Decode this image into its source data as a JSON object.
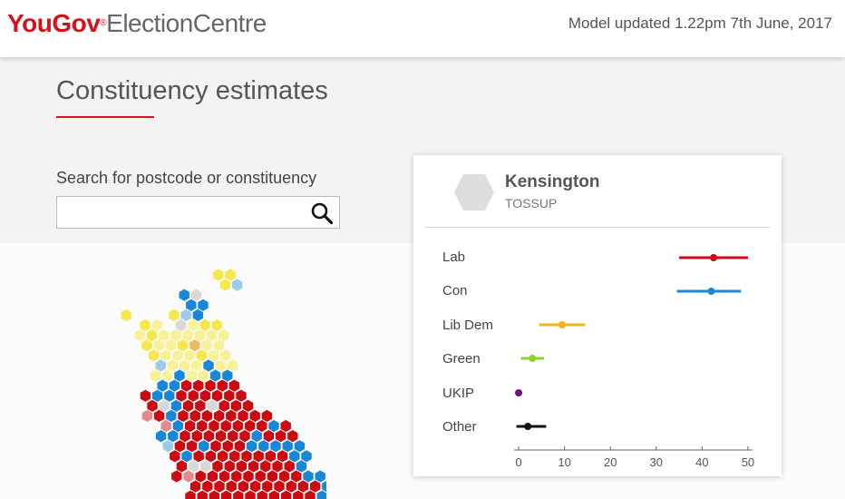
{
  "header": {
    "logo_you": "You",
    "logo_gov": "Gov",
    "logo_reg": "®",
    "logo_centre": "ElectionCentre",
    "updated": "Model updated 1.22pm 7th June, 2017"
  },
  "page": {
    "title": "Constituency estimates"
  },
  "search": {
    "label": "Search for postcode or constituency",
    "placeholder": "",
    "value": ""
  },
  "colors": {
    "lab": "#cc0a12",
    "con": "#1a86d8",
    "libdem": "#f6b21b",
    "green": "#8fd327",
    "ukip": "#70147a",
    "other": "#111111",
    "tossup": "#dddddd"
  },
  "constituency": {
    "name": "Kensington",
    "status": "TOSSUP"
  },
  "chart_data": {
    "type": "scatter",
    "categories": [
      "Lab",
      "Con",
      "Lib Dem",
      "Green",
      "UKIP",
      "Other"
    ],
    "estimates": [
      {
        "party": "Lab",
        "value": 42.5,
        "low": 35,
        "high": 50,
        "color": "#cc0a12"
      },
      {
        "party": "Con",
        "value": 42,
        "low": 34.5,
        "high": 48.5,
        "color": "#1a86d8"
      },
      {
        "party": "Lib Dem",
        "value": 9.5,
        "low": 4.5,
        "high": 14.5,
        "color": "#f6b21b"
      },
      {
        "party": "Green",
        "value": 3,
        "low": 0.5,
        "high": 5.5,
        "color": "#8fd327"
      },
      {
        "party": "UKIP",
        "value": 0,
        "low": 0,
        "high": 0,
        "color": "#70147a"
      },
      {
        "party": "Other",
        "value": 2,
        "low": -0.5,
        "high": 6,
        "color": "#111111"
      }
    ],
    "xticks": [
      0,
      10,
      20,
      30,
      40,
      50
    ],
    "xlim": [
      -1,
      51
    ]
  },
  "hexmap": {
    "rows": [
      "         YY",
      "         Ys",
      "      bt",
      "      bb",
      " Y   Ysb",
      "  Yy tyYY",
      "  yYyyyyyy",
      "  YyyYoyy",
      "   YyyyYyy",
      "   syyybyy",
      "   yybyybb",
      "   bbRRRRR",
      "  RbbRRRRRR",
      "  RtbRRtRRR",
      "  PRbRRRRRRRR",
      "   PbRRRRRRRbR",
      "   bbRRRRRRbRRR",
      "   sRRbRRRbbbbb",
      "    RbRRRRRRRRbb",
      "    RttRRRRRRRb",
      "    RPRRRRRRRRRbb",
      "     RRRRRRRRRRRb",
      "     RRRRRRRRRRRb"
    ],
    "palette": {
      "R": "#cc0a12",
      "P": "#e38a8d",
      "t": "#d8d8d8",
      "b": "#1a86d8",
      "s": "#9ccbee",
      "Y": "#f6e84a",
      "y": "#f8f196",
      "o": "#f0b865"
    }
  }
}
